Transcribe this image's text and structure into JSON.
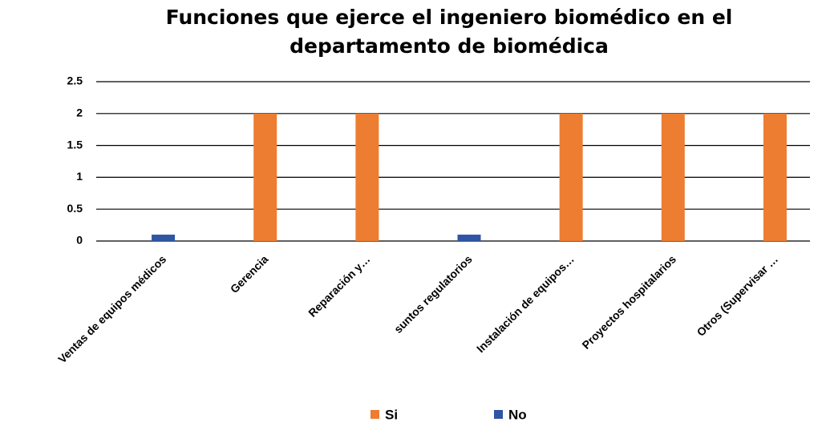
{
  "chart_data": {
    "type": "bar",
    "title": "Funciones que ejerce el ingeniero biomédico en el departamento de biomédica",
    "categories": [
      "Ventas de equipos médicos",
      "Gerencia",
      "Reparación y…",
      "suntos regulatorios",
      "Instalación de equipos…",
      "Proyectos hospitalarios",
      "Otros (Supervisar …"
    ],
    "series": [
      {
        "name": "Si",
        "color": "#ed7d31",
        "values": [
          0,
          2,
          2,
          0,
          2,
          2,
          2
        ]
      },
      {
        "name": "No",
        "color": "#2f55a4",
        "values": [
          0.1,
          0,
          0,
          0.1,
          0,
          0,
          0
        ]
      }
    ],
    "ylim": [
      0,
      2.5
    ],
    "yticks": [
      0,
      0.5,
      1,
      1.5,
      2,
      2.5
    ],
    "grid": true,
    "legend": "bottom"
  }
}
